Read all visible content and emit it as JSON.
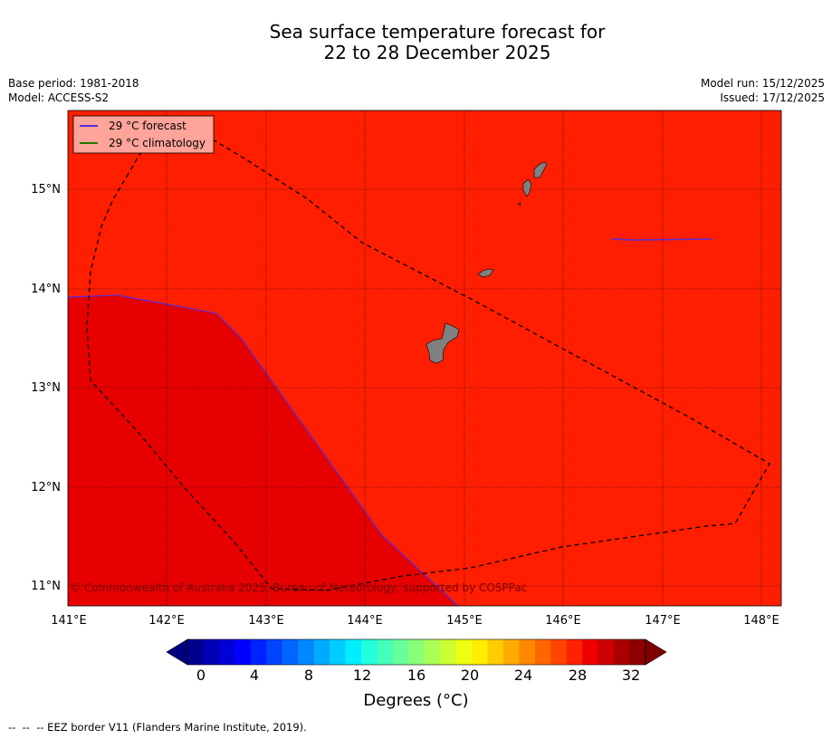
{
  "title_line1": "Sea surface temperature forecast for",
  "title_line2": "22 to 28 December 2025",
  "base_period": "Base period: 1981-2018",
  "model": "Model: ACCESS-S2",
  "model_run": "Model run: 15/12/2025",
  "issued": "Issued: 17/12/2025",
  "copyright": "© Commonwealth of Australia 2025, Bureau of Meteorology, supported by COSPPac",
  "legend": {
    "forecast_label": "29 °C  forecast",
    "climatology_label": "29 °C  climatology",
    "forecast_color": "#5b2bd6",
    "climatology_color": "#1e7a00"
  },
  "axes": {
    "x_ticks": [
      "141°E",
      "142°E",
      "143°E",
      "144°E",
      "145°E",
      "146°E",
      "147°E",
      "148°E"
    ],
    "y_ticks": [
      "15°N",
      "14°N",
      "13°N",
      "12°N",
      "11°N"
    ]
  },
  "map_colors": {
    "warm_region": "#ff1e00",
    "hot_region": "#e60000",
    "land": "#808080"
  },
  "colorbar": {
    "tick_labels": [
      "0",
      "4",
      "8",
      "12",
      "16",
      "20",
      "24",
      "28",
      "32"
    ],
    "unit_label": "Degrees (°C)",
    "colors": [
      "#00008f",
      "#0000b4",
      "#0000d9",
      "#0000ff",
      "#0022ff",
      "#0044ff",
      "#0066ff",
      "#0088ff",
      "#00aaff",
      "#00ccff",
      "#00eeff",
      "#22ffdd",
      "#44ffbb",
      "#66ff99",
      "#88ff77",
      "#aaff55",
      "#ccff33",
      "#eeff11",
      "#ffee00",
      "#ffcc00",
      "#ffaa00",
      "#ff8800",
      "#ff6600",
      "#ff4400",
      "#ff2200",
      "#ee0000",
      "#cc0000",
      "#aa0000",
      "#8b0000"
    ],
    "under_color": "#000080",
    "over_color": "#800000"
  },
  "footer": "--  --  -- EEZ border V11 (Flanders Marine Institute, 2019)."
}
